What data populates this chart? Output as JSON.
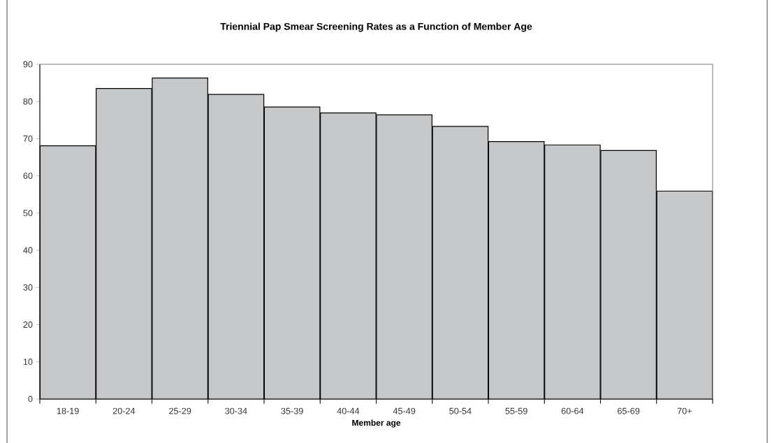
{
  "chart_data": {
    "type": "bar",
    "title": "Triennial Pap Smear Screening Rates as a Function of Member Age",
    "xlabel": "Member age",
    "categories": [
      "18-19",
      "20-24",
      "25-29",
      "30-34",
      "35-39",
      "40-44",
      "45-49",
      "50-54",
      "55-59",
      "60-64",
      "65-69",
      "70+"
    ],
    "values": [
      68.1,
      83.5,
      86.3,
      81.9,
      78.5,
      76.9,
      76.4,
      73.3,
      69.2,
      68.3,
      66.8,
      55.9
    ],
    "color": "#c6c7c9",
    "ylim": [
      0,
      90
    ],
    "yticks": [
      0,
      10,
      20,
      30,
      40,
      50,
      60,
      70,
      80,
      90
    ]
  }
}
